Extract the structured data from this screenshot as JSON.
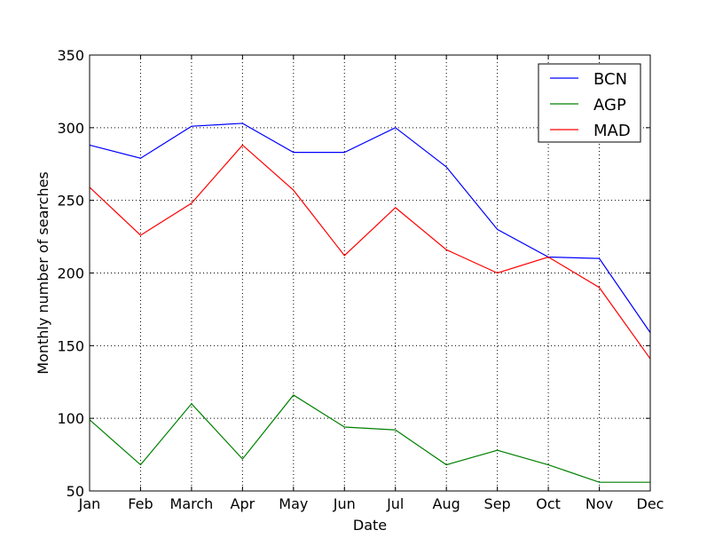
{
  "chart_data": {
    "type": "line",
    "xlabel": "Date",
    "ylabel": "Monthly number of searches",
    "categories": [
      "Jan",
      "Feb",
      "March",
      "Apr",
      "May",
      "Jun",
      "Jul",
      "Aug",
      "Sep",
      "Oct",
      "Nov",
      "Dec"
    ],
    "ylim": [
      50,
      350
    ],
    "yticks": [
      50,
      100,
      150,
      200,
      250,
      300,
      350
    ],
    "grid": true,
    "legend_position": "top-right",
    "series": [
      {
        "name": "BCN",
        "color": "#0000ff",
        "values": [
          288,
          279,
          301,
          303,
          283,
          283,
          300,
          273,
          230,
          211,
          210,
          159
        ]
      },
      {
        "name": "AGP",
        "color": "#008000",
        "values": [
          99,
          68,
          110,
          72,
          116,
          94,
          92,
          68,
          78,
          68,
          56,
          56
        ]
      },
      {
        "name": "MAD",
        "color": "#ff0000",
        "values": [
          259,
          226,
          248,
          288,
          257,
          212,
          245,
          216,
          200,
          211,
          190,
          141
        ]
      }
    ]
  }
}
